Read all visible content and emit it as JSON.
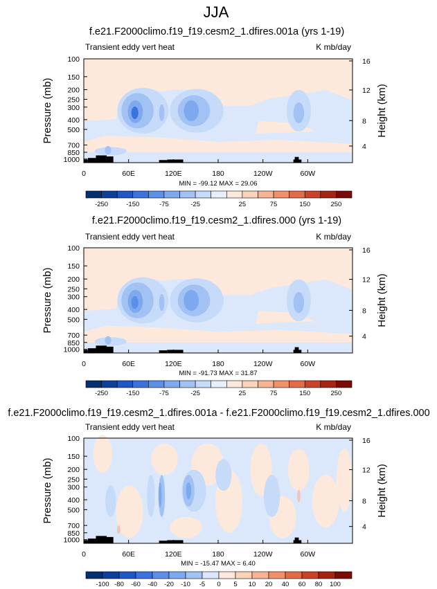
{
  "page_title": "JJA",
  "chart_data": [
    {
      "type": "heatmap",
      "title": "f.e21.F2000climo.f19_f19.cesm2_1.dfires.001a (yrs 1-19)",
      "subtitle_left": "Transient eddy vert heat",
      "subtitle_right": "K mb/day",
      "ylabel": "Pressure (mb)",
      "ylabel_right": "Height (km)",
      "yticks": [
        "100",
        "150",
        "200",
        "250",
        "300",
        "400",
        "500",
        "700",
        "850",
        "1000"
      ],
      "yticks_right": [
        "16",
        "12",
        "8",
        "4"
      ],
      "xticks": [
        "0",
        "60E",
        "120E",
        "180",
        "120W",
        "60W"
      ],
      "min_max_label": "MIN = -99.12   MAX =  29.06",
      "min": -99.12,
      "max": 29.06,
      "colorbar_levels": [
        -250,
        -200,
        -150,
        -100,
        -75,
        -50,
        -25,
        -10,
        10,
        25,
        50,
        75,
        100,
        150,
        200,
        250
      ],
      "colorbar_labels": [
        "-250",
        "-150",
        "-75",
        "-25",
        "25",
        "75",
        "150",
        "250"
      ],
      "colorbar_colors": [
        "#05306f",
        "#0f3f9c",
        "#1f57c7",
        "#3a73de",
        "#5b8fe8",
        "#7ea9ef",
        "#a3c2f4",
        "#c6daf9",
        "#e6f0fc",
        "#fde9dc",
        "#fbd3bb",
        "#f7b495",
        "#f0916c",
        "#e36b46",
        "#c84327",
        "#a62412",
        "#7c0a05"
      ]
    },
    {
      "type": "heatmap",
      "title": "f.e21.F2000climo.f19_f19.cesm2_1.dfires.000 (yrs 1-19)",
      "subtitle_left": "Transient eddy vert heat",
      "subtitle_right": "K mb/day",
      "ylabel": "Pressure (mb)",
      "ylabel_right": "Height (km)",
      "yticks": [
        "100",
        "150",
        "200",
        "250",
        "300",
        "400",
        "500",
        "700",
        "850",
        "1000"
      ],
      "yticks_right": [
        "16",
        "12",
        "8",
        "4"
      ],
      "xticks": [
        "0",
        "60E",
        "120E",
        "180",
        "120W",
        "60W"
      ],
      "min_max_label": "MIN = -91.73   MAX =  31.87",
      "min": -91.73,
      "max": 31.87,
      "colorbar_levels": [
        -250,
        -200,
        -150,
        -100,
        -75,
        -50,
        -25,
        -10,
        10,
        25,
        50,
        75,
        100,
        150,
        200,
        250
      ],
      "colorbar_labels": [
        "-250",
        "-150",
        "-75",
        "-25",
        "25",
        "75",
        "150",
        "250"
      ],
      "colorbar_colors": [
        "#05306f",
        "#0f3f9c",
        "#1f57c7",
        "#3a73de",
        "#5b8fe8",
        "#7ea9ef",
        "#a3c2f4",
        "#c6daf9",
        "#e6f0fc",
        "#fde9dc",
        "#fbd3bb",
        "#f7b495",
        "#f0916c",
        "#e36b46",
        "#c84327",
        "#a62412",
        "#7c0a05"
      ]
    },
    {
      "type": "heatmap",
      "title": "f.e21.F2000climo.f19_f19.cesm2_1.dfires.001a - f.e21.F2000climo.f19_f19.cesm2_1.dfires.000",
      "subtitle_left": "Transient eddy vert heat",
      "subtitle_right": "K mb/day",
      "ylabel": "Pressure (mb)",
      "ylabel_right": "Height (km)",
      "yticks": [
        "100",
        "150",
        "200",
        "250",
        "300",
        "400",
        "500",
        "700",
        "850",
        "1000"
      ],
      "yticks_right": [
        "16",
        "12",
        "8",
        "4"
      ],
      "xticks": [
        "0",
        "60E",
        "120E",
        "180",
        "120W",
        "60W"
      ],
      "min_max_label": "MIN = -15.47   MAX =   6.40",
      "min": -15.47,
      "max": 6.4,
      "colorbar_levels": [
        -100,
        -80,
        -60,
        -40,
        -20,
        -10,
        -5,
        0,
        5,
        10,
        20,
        40,
        60,
        80,
        100
      ],
      "colorbar_labels": [
        "-100",
        "-80",
        "-60",
        "-40",
        "-20",
        "-10",
        "-5",
        "0",
        "5",
        "10",
        "20",
        "40",
        "60",
        "80",
        "100"
      ],
      "colorbar_colors": [
        "#05306f",
        "#0f3f9c",
        "#1f57c7",
        "#3a73de",
        "#5b8fe8",
        "#7ea9ef",
        "#a3c2f4",
        "#dbe8fb",
        "#fde9dc",
        "#fbd3bb",
        "#f7b495",
        "#f0916c",
        "#e36b46",
        "#c84327",
        "#a62412",
        "#7c0a05"
      ]
    }
  ]
}
